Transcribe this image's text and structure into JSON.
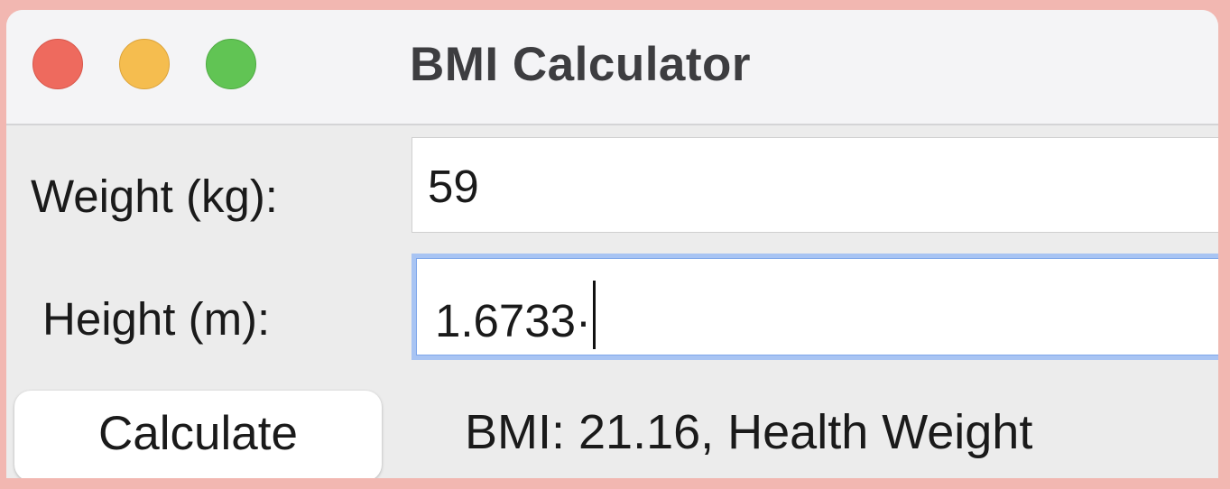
{
  "window": {
    "title": "BMI Calculator"
  },
  "form": {
    "weight_label": "Weight (kg):",
    "weight_value": "59",
    "height_label": "Height (m):",
    "height_value": "1.6733·"
  },
  "actions": {
    "calculate_label": "Calculate"
  },
  "result": {
    "text": "BMI: 21.16, Health Weight"
  },
  "colors": {
    "close": "#ee6a5e",
    "minimize": "#f5bd4f",
    "maximize": "#61c454",
    "focus_ring": "#a8c4f3",
    "backdrop": "#f2b7b1"
  }
}
